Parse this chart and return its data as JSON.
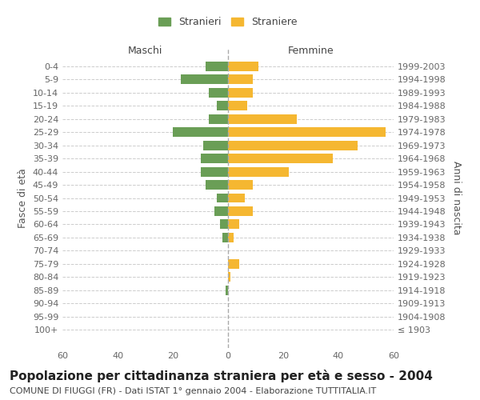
{
  "age_groups": [
    "0-4",
    "5-9",
    "10-14",
    "15-19",
    "20-24",
    "25-29",
    "30-34",
    "35-39",
    "40-44",
    "45-49",
    "50-54",
    "55-59",
    "60-64",
    "65-69",
    "70-74",
    "75-79",
    "80-84",
    "85-89",
    "90-94",
    "95-99",
    "100+"
  ],
  "birth_years": [
    "1999-2003",
    "1994-1998",
    "1989-1993",
    "1984-1988",
    "1979-1983",
    "1974-1978",
    "1969-1973",
    "1964-1968",
    "1959-1963",
    "1954-1958",
    "1949-1953",
    "1944-1948",
    "1939-1943",
    "1934-1938",
    "1929-1933",
    "1924-1928",
    "1919-1923",
    "1914-1918",
    "1909-1913",
    "1904-1908",
    "≤ 1903"
  ],
  "maschi": [
    8,
    17,
    7,
    4,
    7,
    20,
    9,
    10,
    10,
    8,
    4,
    5,
    3,
    2,
    0,
    0,
    0,
    1,
    0,
    0,
    0
  ],
  "femmine": [
    11,
    9,
    9,
    7,
    25,
    57,
    47,
    38,
    22,
    9,
    6,
    9,
    4,
    2,
    0,
    4,
    1,
    0,
    0,
    0,
    0
  ],
  "maschi_color": "#6a9e56",
  "femmine_color": "#f5b731",
  "title": "Popolazione per cittadinanza straniera per età e sesso - 2004",
  "subtitle": "COMUNE DI FIUGGI (FR) - Dati ISTAT 1° gennaio 2004 - Elaborazione TUTTITALIA.IT",
  "ylabel_left": "Fasce di età",
  "ylabel_right": "Anni di nascita",
  "xlabel_left": "Maschi",
  "xlabel_right": "Femmine",
  "legend_stranieri": "Stranieri",
  "legend_straniere": "Straniere",
  "xlim": 60,
  "background_color": "#ffffff",
  "grid_color": "#cccccc",
  "title_fontsize": 11,
  "subtitle_fontsize": 8,
  "tick_fontsize": 8,
  "label_fontsize": 9
}
